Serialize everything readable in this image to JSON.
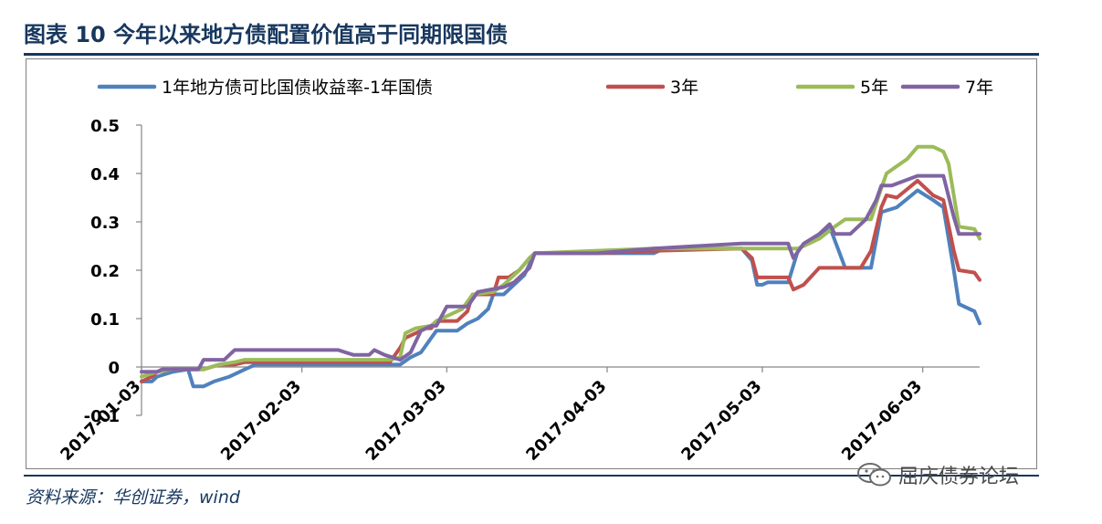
{
  "figure": {
    "title": "图表 10    今年以来地方债配置价值高于同期限国债",
    "source": "资料来源：华创证券，wind",
    "watermark": "屈庆债券论坛"
  },
  "colors": {
    "title": "#17375e",
    "series": [
      "#4f81bd",
      "#c0504d",
      "#9bbb59",
      "#8064a2"
    ]
  },
  "chart_data": {
    "type": "line",
    "ylim": [
      -0.1,
      0.5
    ],
    "yticks": [
      -0.1,
      0,
      0.1,
      0.2,
      0.3,
      0.4,
      0.5
    ],
    "ytick_labels": [
      "-0.1",
      "0",
      "0.1",
      "0.2",
      "0.3",
      "0.4",
      "0.5"
    ],
    "xlim": [
      "2017-01-03",
      "2017-06-14"
    ],
    "xticks": [
      "2017-01-03",
      "2017-02-03",
      "2017-03-03",
      "2017-04-03",
      "2017-05-03",
      "2017-06-03"
    ],
    "grid": false,
    "legend_position": "top",
    "series": [
      {
        "name": "1年地方债可比国债收益率-1年国债",
        "color": "#4f81bd",
        "points": [
          [
            "2017-01-03",
            -0.03
          ],
          [
            "2017-01-05",
            -0.03
          ],
          [
            "2017-01-06",
            -0.02
          ],
          [
            "2017-01-09",
            -0.01
          ],
          [
            "2017-01-12",
            -0.005
          ],
          [
            "2017-01-13",
            -0.04
          ],
          [
            "2017-01-15",
            -0.04
          ],
          [
            "2017-01-17",
            -0.03
          ],
          [
            "2017-01-20",
            -0.02
          ],
          [
            "2017-01-23",
            -0.005
          ],
          [
            "2017-01-25",
            0.005
          ],
          [
            "2017-02-05",
            0.005
          ],
          [
            "2017-02-10",
            0.005
          ],
          [
            "2017-02-15",
            0.005
          ],
          [
            "2017-02-20",
            0.005
          ],
          [
            "2017-02-22",
            0.005
          ],
          [
            "2017-02-24",
            0.02
          ],
          [
            "2017-02-26",
            0.03
          ],
          [
            "2017-02-28",
            0.06
          ],
          [
            "2017-03-01",
            0.075
          ],
          [
            "2017-03-05",
            0.075
          ],
          [
            "2017-03-07",
            0.09
          ],
          [
            "2017-03-09",
            0.1
          ],
          [
            "2017-03-11",
            0.12
          ],
          [
            "2017-03-12",
            0.15
          ],
          [
            "2017-03-14",
            0.15
          ],
          [
            "2017-03-16",
            0.17
          ],
          [
            "2017-03-18",
            0.19
          ],
          [
            "2017-03-20",
            0.235
          ],
          [
            "2017-04-01",
            0.235
          ],
          [
            "2017-04-12",
            0.235
          ],
          [
            "2017-04-14",
            0.245
          ],
          [
            "2017-04-29",
            0.245
          ],
          [
            "2017-05-01",
            0.22
          ],
          [
            "2017-05-02",
            0.17
          ],
          [
            "2017-05-03",
            0.17
          ],
          [
            "2017-05-04",
            0.175
          ],
          [
            "2017-05-08",
            0.175
          ],
          [
            "2017-05-10",
            0.245
          ],
          [
            "2017-05-13",
            0.265
          ],
          [
            "2017-05-16",
            0.29
          ],
          [
            "2017-05-19",
            0.205
          ],
          [
            "2017-05-22",
            0.205
          ],
          [
            "2017-05-24",
            0.205
          ],
          [
            "2017-05-26",
            0.32
          ],
          [
            "2017-05-29",
            0.33
          ],
          [
            "2017-06-02",
            0.365
          ],
          [
            "2017-06-05",
            0.345
          ],
          [
            "2017-06-07",
            0.33
          ],
          [
            "2017-06-09",
            0.2
          ],
          [
            "2017-06-10",
            0.13
          ],
          [
            "2017-06-13",
            0.115
          ],
          [
            "2017-06-14",
            0.09
          ]
        ]
      },
      {
        "name": "3年",
        "color": "#c0504d",
        "points": [
          [
            "2017-01-03",
            -0.03
          ],
          [
            "2017-01-05",
            -0.02
          ],
          [
            "2017-01-06",
            -0.01
          ],
          [
            "2017-01-09",
            -0.005
          ],
          [
            "2017-01-12",
            -0.005
          ],
          [
            "2017-01-15",
            -0.005
          ],
          [
            "2017-01-18",
            0.005
          ],
          [
            "2017-01-21",
            0.005
          ],
          [
            "2017-01-23",
            0.01
          ],
          [
            "2017-02-05",
            0.01
          ],
          [
            "2017-02-15",
            0.01
          ],
          [
            "2017-02-20",
            0.01
          ],
          [
            "2017-02-22",
            0.04
          ],
          [
            "2017-02-23",
            0.06
          ],
          [
            "2017-02-25",
            0.07
          ],
          [
            "2017-02-27",
            0.08
          ],
          [
            "2017-02-28",
            0.08
          ],
          [
            "2017-03-01",
            0.095
          ],
          [
            "2017-03-05",
            0.095
          ],
          [
            "2017-03-07",
            0.115
          ],
          [
            "2017-03-08",
            0.15
          ],
          [
            "2017-03-12",
            0.15
          ],
          [
            "2017-03-13",
            0.185
          ],
          [
            "2017-03-15",
            0.185
          ],
          [
            "2017-03-17",
            0.2
          ],
          [
            "2017-03-19",
            0.225
          ],
          [
            "2017-03-20",
            0.235
          ],
          [
            "2017-04-01",
            0.235
          ],
          [
            "2017-04-12",
            0.24
          ],
          [
            "2017-04-29",
            0.245
          ],
          [
            "2017-05-01",
            0.225
          ],
          [
            "2017-05-02",
            0.185
          ],
          [
            "2017-05-08",
            0.185
          ],
          [
            "2017-05-09",
            0.16
          ],
          [
            "2017-05-11",
            0.17
          ],
          [
            "2017-05-14",
            0.205
          ],
          [
            "2017-05-19",
            0.205
          ],
          [
            "2017-05-22",
            0.205
          ],
          [
            "2017-05-24",
            0.24
          ],
          [
            "2017-05-26",
            0.33
          ],
          [
            "2017-05-27",
            0.355
          ],
          [
            "2017-05-29",
            0.35
          ],
          [
            "2017-06-02",
            0.385
          ],
          [
            "2017-06-05",
            0.355
          ],
          [
            "2017-06-07",
            0.345
          ],
          [
            "2017-06-09",
            0.24
          ],
          [
            "2017-06-10",
            0.2
          ],
          [
            "2017-06-13",
            0.195
          ],
          [
            "2017-06-14",
            0.18
          ]
        ]
      },
      {
        "name": "5年",
        "color": "#9bbb59",
        "points": [
          [
            "2017-01-03",
            -0.02
          ],
          [
            "2017-01-06",
            -0.01
          ],
          [
            "2017-01-09",
            -0.005
          ],
          [
            "2017-01-15",
            -0.005
          ],
          [
            "2017-01-18",
            0.005
          ],
          [
            "2017-01-21",
            0.01
          ],
          [
            "2017-01-23",
            0.015
          ],
          [
            "2017-02-05",
            0.015
          ],
          [
            "2017-02-10",
            0.015
          ],
          [
            "2017-02-15",
            0.015
          ],
          [
            "2017-02-20",
            0.015
          ],
          [
            "2017-02-22",
            0.02
          ],
          [
            "2017-02-23",
            0.07
          ],
          [
            "2017-02-25",
            0.08
          ],
          [
            "2017-02-28",
            0.085
          ],
          [
            "2017-03-01",
            0.095
          ],
          [
            "2017-03-06",
            0.12
          ],
          [
            "2017-03-08",
            0.15
          ],
          [
            "2017-03-12",
            0.155
          ],
          [
            "2017-03-14",
            0.17
          ],
          [
            "2017-03-17",
            0.2
          ],
          [
            "2017-03-19",
            0.225
          ],
          [
            "2017-03-20",
            0.235
          ],
          [
            "2017-04-12",
            0.245
          ],
          [
            "2017-04-30",
            0.245
          ],
          [
            "2017-05-10",
            0.245
          ],
          [
            "2017-05-14",
            0.265
          ],
          [
            "2017-05-17",
            0.29
          ],
          [
            "2017-05-19",
            0.305
          ],
          [
            "2017-05-22",
            0.305
          ],
          [
            "2017-05-24",
            0.305
          ],
          [
            "2017-05-26",
            0.37
          ],
          [
            "2017-05-27",
            0.4
          ],
          [
            "2017-05-29",
            0.415
          ],
          [
            "2017-05-31",
            0.43
          ],
          [
            "2017-06-02",
            0.455
          ],
          [
            "2017-06-05",
            0.455
          ],
          [
            "2017-06-07",
            0.445
          ],
          [
            "2017-06-08",
            0.42
          ],
          [
            "2017-06-10",
            0.29
          ],
          [
            "2017-06-13",
            0.285
          ],
          [
            "2017-06-14",
            0.265
          ]
        ]
      },
      {
        "name": "7年",
        "color": "#8064a2",
        "points": [
          [
            "2017-01-03",
            -0.01
          ],
          [
            "2017-01-06",
            -0.01
          ],
          [
            "2017-01-07",
            -0.005
          ],
          [
            "2017-01-14",
            -0.005
          ],
          [
            "2017-01-15",
            0.015
          ],
          [
            "2017-01-19",
            0.015
          ],
          [
            "2017-01-21",
            0.035
          ],
          [
            "2017-02-03",
            0.035
          ],
          [
            "2017-02-10",
            0.035
          ],
          [
            "2017-02-13",
            0.025
          ],
          [
            "2017-02-16",
            0.025
          ],
          [
            "2017-02-17",
            0.035
          ],
          [
            "2017-02-19",
            0.025
          ],
          [
            "2017-02-22",
            0.015
          ],
          [
            "2017-02-24",
            0.03
          ],
          [
            "2017-02-26",
            0.075
          ],
          [
            "2017-02-28",
            0.085
          ],
          [
            "2017-03-01",
            0.085
          ],
          [
            "2017-03-03",
            0.125
          ],
          [
            "2017-03-05",
            0.125
          ],
          [
            "2017-03-07",
            0.125
          ],
          [
            "2017-03-09",
            0.155
          ],
          [
            "2017-03-14",
            0.165
          ],
          [
            "2017-03-16",
            0.175
          ],
          [
            "2017-03-19",
            0.205
          ],
          [
            "2017-03-20",
            0.235
          ],
          [
            "2017-04-01",
            0.235
          ],
          [
            "2017-04-12",
            0.245
          ],
          [
            "2017-04-29",
            0.255
          ],
          [
            "2017-05-04",
            0.255
          ],
          [
            "2017-05-08",
            0.255
          ],
          [
            "2017-05-09",
            0.225
          ],
          [
            "2017-05-11",
            0.255
          ],
          [
            "2017-05-14",
            0.275
          ],
          [
            "2017-05-16",
            0.295
          ],
          [
            "2017-05-17",
            0.275
          ],
          [
            "2017-05-20",
            0.275
          ],
          [
            "2017-05-23",
            0.305
          ],
          [
            "2017-05-25",
            0.345
          ],
          [
            "2017-05-26",
            0.375
          ],
          [
            "2017-05-28",
            0.375
          ],
          [
            "2017-06-02",
            0.395
          ],
          [
            "2017-06-06",
            0.395
          ],
          [
            "2017-06-07",
            0.395
          ],
          [
            "2017-06-09",
            0.31
          ],
          [
            "2017-06-10",
            0.275
          ],
          [
            "2017-06-14",
            0.275
          ]
        ]
      }
    ]
  }
}
